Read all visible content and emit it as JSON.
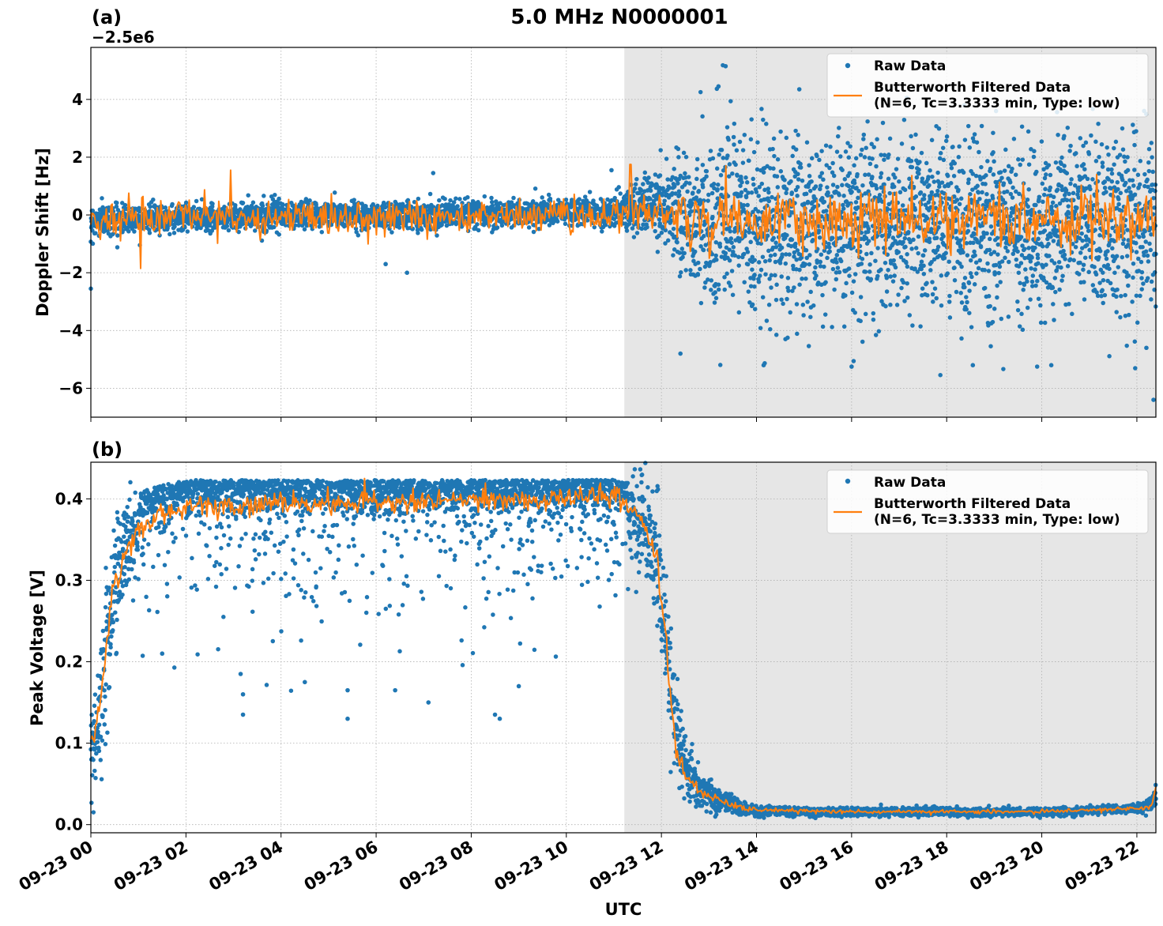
{
  "figure": {
    "title": "5.0 MHz N0000001",
    "xlabel": "UTC"
  },
  "legend": {
    "raw_label": "Raw Data",
    "filtered_label_line1": "Butterworth Filtered Data",
    "filtered_label_line2": "(N=6, Tc=3.3333 min, Type: low)"
  },
  "colors": {
    "raw": "#1f77b4",
    "filtered": "#ff7f0e",
    "shade": "#e6e6e6",
    "grid": "#b0b0b0"
  },
  "chart_data": [
    {
      "panel_label": "(a)",
      "type": "scatter+line",
      "ylabel": "Doppler Shift [Hz]",
      "offset_text": "−2.5e6",
      "xlim_hours": [
        0,
        22.4
      ],
      "ylim": [
        -7.0,
        5.8
      ],
      "y_ticks": [
        4,
        2,
        0,
        -2,
        -4,
        -6
      ],
      "y_tick_labels": [
        "4",
        "2",
        "0",
        "−2",
        "−4",
        "−6"
      ],
      "grid": true,
      "legend_position": "top-right",
      "shaded_region_hours": [
        11.22,
        22.4
      ],
      "raw_envelope": {
        "x_hours": [
          0,
          1,
          2,
          3,
          4,
          5,
          6,
          7,
          8,
          9,
          10,
          11,
          11.5,
          12,
          12.5,
          13,
          14,
          15,
          16,
          17,
          18,
          19,
          20,
          21,
          22,
          22.4
        ],
        "center": [
          -0.2,
          -0.1,
          -0.1,
          -0.05,
          0,
          0,
          0,
          0,
          0.05,
          0.05,
          0.1,
          0.1,
          0.3,
          0.4,
          0.0,
          -0.3,
          -0.4,
          -0.4,
          -0.4,
          -0.4,
          -0.4,
          -0.4,
          -0.4,
          -0.4,
          -0.4,
          -0.4
        ],
        "spread": [
          0.35,
          0.3,
          0.3,
          0.3,
          0.3,
          0.3,
          0.3,
          0.3,
          0.3,
          0.3,
          0.3,
          0.35,
          0.5,
          0.9,
          1.5,
          2.0,
          2.1,
          2.0,
          2.0,
          2.0,
          2.0,
          2.0,
          2.0,
          2.0,
          2.1,
          2.2
        ]
      },
      "raw_outliers": [
        {
          "x": 13.35,
          "y": 5.15
        },
        {
          "x": 13.2,
          "y": 4.45
        },
        {
          "x": 0.0,
          "y": -2.55
        },
        {
          "x": 6.2,
          "y": -1.7
        },
        {
          "x": 6.65,
          "y": -2.0
        },
        {
          "x": 7.2,
          "y": 1.45
        },
        {
          "x": 10.95,
          "y": 1.55
        },
        {
          "x": 12.4,
          "y": -4.8
        },
        {
          "x": 14.15,
          "y": -5.2
        },
        {
          "x": 16.0,
          "y": -5.25
        },
        {
          "x": 18.55,
          "y": -5.2
        },
        {
          "x": 20.2,
          "y": -5.2
        },
        {
          "x": 22.35,
          "y": -6.4
        },
        {
          "x": 14.9,
          "y": 4.35
        },
        {
          "x": 22.2,
          "y": -4.6
        }
      ],
      "filtered_envelope": {
        "x_hours": [
          0,
          11.2,
          12,
          13,
          22.4
        ],
        "center": [
          -0.15,
          0.0,
          0.1,
          -0.2,
          -0.1
        ],
        "amplitude": [
          0.55,
          0.55,
          0.7,
          0.9,
          0.9
        ]
      },
      "filtered_spikes": [
        {
          "x": 2.95,
          "y": 1.55
        },
        {
          "x": 11.35,
          "y": 1.75
        },
        {
          "x": 1.05,
          "y": -1.85
        },
        {
          "x": 13.35,
          "y": 1.7
        },
        {
          "x": 21.15,
          "y": 1.4
        },
        {
          "x": 13.0,
          "y": -1.5
        }
      ]
    },
    {
      "panel_label": "(b)",
      "type": "scatter+line",
      "ylabel": "Peak Voltage [V]",
      "xlim_hours": [
        0,
        22.4
      ],
      "ylim": [
        -0.01,
        0.445
      ],
      "y_ticks": [
        0.0,
        0.1,
        0.2,
        0.3,
        0.4
      ],
      "y_tick_labels": [
        "0.0",
        "0.1",
        "0.2",
        "0.3",
        "0.4"
      ],
      "grid": true,
      "legend_position": "top-right",
      "shaded_region_hours": [
        11.22,
        22.4
      ],
      "raw_envelope": {
        "x_hours": [
          0,
          0.15,
          0.3,
          0.5,
          0.8,
          1.2,
          1.6,
          2,
          4,
          6,
          8,
          10,
          11,
          11.6,
          11.9,
          12.1,
          12.3,
          12.5,
          12.8,
          13.2,
          13.6,
          14,
          16,
          18,
          20,
          22,
          22.3,
          22.4
        ],
        "center": [
          0.09,
          0.13,
          0.2,
          0.3,
          0.35,
          0.37,
          0.38,
          0.385,
          0.385,
          0.385,
          0.385,
          0.39,
          0.395,
          0.37,
          0.33,
          0.23,
          0.12,
          0.07,
          0.045,
          0.03,
          0.022,
          0.017,
          0.015,
          0.016,
          0.015,
          0.02,
          0.025,
          0.04
        ],
        "spread": [
          0.05,
          0.06,
          0.07,
          0.06,
          0.05,
          0.045,
          0.04,
          0.04,
          0.04,
          0.04,
          0.04,
          0.035,
          0.03,
          0.05,
          0.06,
          0.07,
          0.05,
          0.03,
          0.02,
          0.012,
          0.008,
          0.005,
          0.004,
          0.004,
          0.004,
          0.004,
          0.008,
          0.015
        ]
      },
      "raw_outliers": [
        {
          "x": 3.2,
          "y": 0.135
        },
        {
          "x": 3.2,
          "y": 0.16
        },
        {
          "x": 3.15,
          "y": 0.185
        },
        {
          "x": 5.4,
          "y": 0.13
        },
        {
          "x": 5.4,
          "y": 0.165
        },
        {
          "x": 6.4,
          "y": 0.165
        },
        {
          "x": 7.1,
          "y": 0.15
        },
        {
          "x": 8.5,
          "y": 0.135
        },
        {
          "x": 8.6,
          "y": 0.13
        },
        {
          "x": 1.5,
          "y": 0.21
        },
        {
          "x": 4.5,
          "y": 0.175
        },
        {
          "x": 9.0,
          "y": 0.17
        }
      ],
      "filtered_envelope": {
        "x_hours": [
          0,
          0.15,
          0.3,
          0.5,
          0.8,
          1.2,
          1.6,
          2,
          4,
          6,
          8,
          10,
          11,
          11.6,
          11.9,
          12.1,
          12.3,
          12.5,
          12.8,
          13.2,
          13.6,
          14,
          16,
          18,
          20,
          22,
          22.3,
          22.4
        ],
        "center": [
          0.1,
          0.14,
          0.2,
          0.3,
          0.345,
          0.37,
          0.38,
          0.39,
          0.395,
          0.395,
          0.4,
          0.4,
          0.405,
          0.375,
          0.33,
          0.22,
          0.1,
          0.06,
          0.04,
          0.03,
          0.022,
          0.018,
          0.016,
          0.016,
          0.016,
          0.02,
          0.022,
          0.045
        ],
        "amplitude": [
          0.02,
          0.02,
          0.02,
          0.02,
          0.02,
          0.012,
          0.012,
          0.012,
          0.012,
          0.012,
          0.012,
          0.012,
          0.012,
          0.015,
          0.015,
          0.02,
          0.015,
          0.01,
          0.006,
          0.004,
          0.003,
          0.002,
          0.002,
          0.002,
          0.002,
          0.002,
          0.003,
          0.004
        ]
      },
      "filtered_spikes": [
        {
          "x": 5.75,
          "y": 0.425
        }
      ]
    }
  ],
  "x_axis": {
    "tick_hours": [
      0,
      2,
      4,
      6,
      8,
      10,
      12,
      14,
      16,
      18,
      20,
      22
    ],
    "tick_labels": [
      "09-23 00",
      "09-23 02",
      "09-23 04",
      "09-23 06",
      "09-23 08",
      "09-23 10",
      "09-23 12",
      "09-23 14",
      "09-23 16",
      "09-23 18",
      "09-23 20",
      "09-23 22"
    ]
  }
}
